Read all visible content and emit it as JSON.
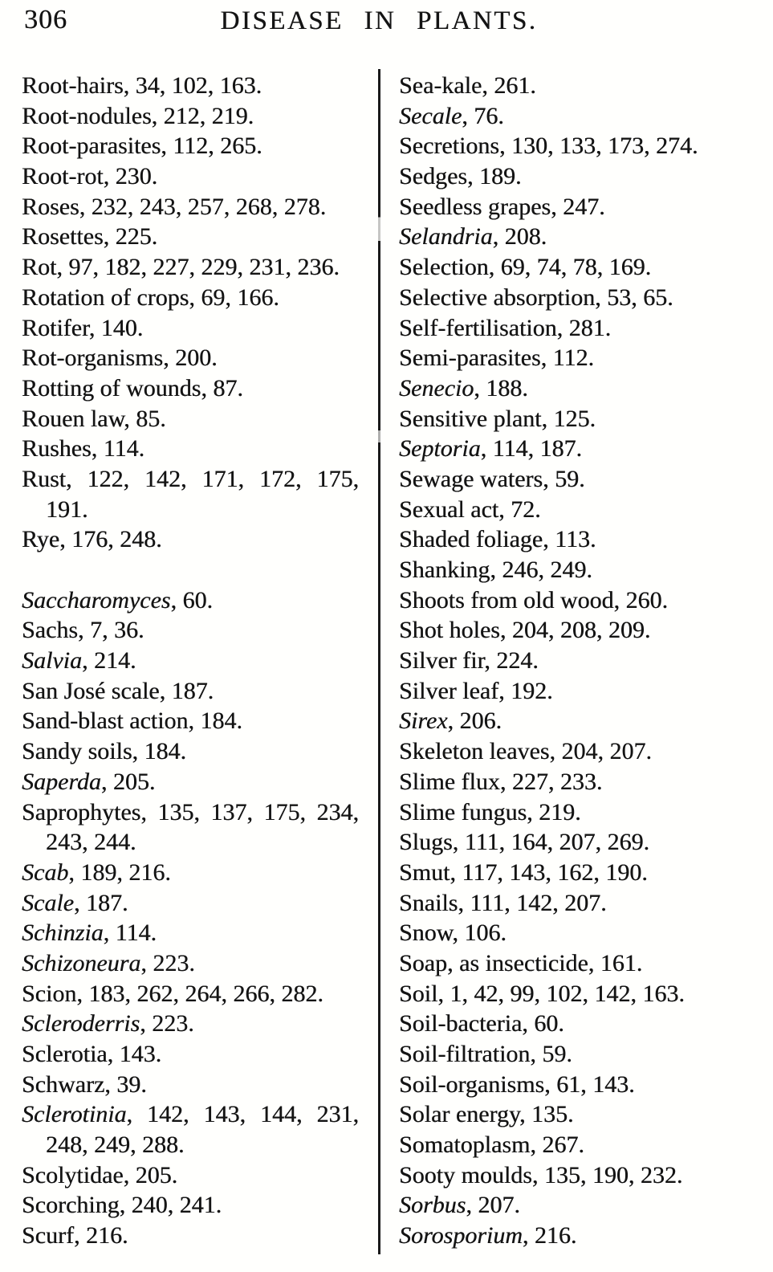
{
  "page": {
    "number": "306",
    "title": "DISEASE IN PLANTS."
  },
  "index": {
    "left": [
      {
        "t": "Root-hairs",
        "p": ", 34, 102, 163.",
        "i": false
      },
      {
        "t": "Root-nodules",
        "p": ", 212, 219.",
        "i": false
      },
      {
        "t": "Root-parasites",
        "p": ", 112, 265.",
        "i": false
      },
      {
        "t": "Root-rot",
        "p": ", 230.",
        "i": false
      },
      {
        "t": "Roses",
        "p": ", 232, 243, 257, 268, 278.",
        "i": false
      },
      {
        "t": "Rosettes",
        "p": ", 225.",
        "i": false
      },
      {
        "t": "Rot",
        "p": ", 97, 182, 227, 229, 231, 236.",
        "i": false
      },
      {
        "t": "Rotation of crops",
        "p": ", 69, 166.",
        "i": false
      },
      {
        "t": "Rotifer",
        "p": ", 140.",
        "i": false
      },
      {
        "t": "Rot-organisms",
        "p": ", 200.",
        "i": false
      },
      {
        "t": "Rotting of wounds",
        "p": ", 87.",
        "i": false
      },
      {
        "t": "Rouen law",
        "p": ", 85.",
        "i": false
      },
      {
        "t": "Rushes",
        "p": ", 114.",
        "i": false
      },
      {
        "t": "Rust",
        "p": ", 122, 142, 171, 172, 175,",
        "i": false,
        "j": true
      },
      {
        "c": "191."
      },
      {
        "t": "Rye",
        "p": ", 176, 248.",
        "i": false
      },
      {
        "blank": true
      },
      {
        "t": "Saccharomyces",
        "p": ", 60.",
        "i": true
      },
      {
        "t": "Sachs",
        "p": ", 7, 36.",
        "i": false
      },
      {
        "t": "Salvia",
        "p": ", 214.",
        "i": true
      },
      {
        "t": "San José scale",
        "p": ", 187.",
        "i": false
      },
      {
        "t": "Sand-blast action",
        "p": ", 184.",
        "i": false
      },
      {
        "t": "Sandy soils",
        "p": ", 184.",
        "i": false
      },
      {
        "t": "Saperda",
        "p": ", 205.",
        "i": true
      },
      {
        "t": "Saprophytes",
        "p": ", 135, 137, 175, 234,",
        "i": false,
        "j": true
      },
      {
        "c": "243, 244."
      },
      {
        "t": "Scab",
        "p": ", 189, 216.",
        "i": true
      },
      {
        "t": "Scale",
        "p": ", 187.",
        "i": true
      },
      {
        "t": "Schinzia",
        "p": ", 114.",
        "i": true
      },
      {
        "t": "Schizoneura",
        "p": ", 223.",
        "i": true
      },
      {
        "t": "Scion",
        "p": ", 183, 262, 264, 266, 282.",
        "i": false
      },
      {
        "t": "Scleroderris",
        "p": ", 223.",
        "i": true
      },
      {
        "t": "Sclerotia",
        "p": ", 143.",
        "i": false
      },
      {
        "t": "Schwarz",
        "p": ", 39.",
        "i": false
      },
      {
        "t": "Sclerotinia",
        "p": ", 142, 143, 144, 231,",
        "i": true,
        "j": true
      },
      {
        "c": "248, 249, 288."
      },
      {
        "t": "Scolytidae",
        "p": ", 205.",
        "i": false
      },
      {
        "t": "Scorching",
        "p": ", 240, 241.",
        "i": false
      },
      {
        "t": "Scurf",
        "p": ", 216.",
        "i": false
      }
    ],
    "right": [
      {
        "t": "Sea-kale",
        "p": ", 261.",
        "i": false
      },
      {
        "t": "Secale",
        "p": ", 76.",
        "i": true
      },
      {
        "t": "Secretions",
        "p": ", 130, 133, 173, 274.",
        "i": false
      },
      {
        "t": "Sedges",
        "p": ", 189.",
        "i": false
      },
      {
        "t": "Seedless grapes",
        "p": ", 247.",
        "i": false
      },
      {
        "t": "Selandria",
        "p": ", 208.",
        "i": true
      },
      {
        "t": "Selection",
        "p": ", 69, 74, 78, 169.",
        "i": false
      },
      {
        "t": "Selective absorption",
        "p": ", 53, 65.",
        "i": false
      },
      {
        "t": "Self-fertilisation",
        "p": ", 281.",
        "i": false
      },
      {
        "t": "Semi-parasites",
        "p": ", 112.",
        "i": false
      },
      {
        "t": "Senecio",
        "p": ", 188.",
        "i": true
      },
      {
        "t": "Sensitive plant",
        "p": ", 125.",
        "i": false
      },
      {
        "t": "Septoria",
        "p": ", 114, 187.",
        "i": true
      },
      {
        "t": "Sewage waters",
        "p": ", 59.",
        "i": false
      },
      {
        "t": "Sexual act",
        "p": ", 72.",
        "i": false
      },
      {
        "t": "Shaded foliage",
        "p": ", 113.",
        "i": false
      },
      {
        "t": "Shanking",
        "p": ", 246, 249.",
        "i": false
      },
      {
        "t": "Shoots from old wood",
        "p": ", 260.",
        "i": false
      },
      {
        "t": "Shot holes",
        "p": ", 204, 208, 209.",
        "i": false
      },
      {
        "t": "Silver fir",
        "p": ", 224.",
        "i": false
      },
      {
        "t": "Silver leaf",
        "p": ", 192.",
        "i": false
      },
      {
        "t": "Sirex",
        "p": ", 206.",
        "i": true
      },
      {
        "t": "Skeleton leaves",
        "p": ", 204, 207.",
        "i": false
      },
      {
        "t": "Slime flux",
        "p": ", 227, 233.",
        "i": false
      },
      {
        "t": "Slime fungus",
        "p": ", 219.",
        "i": false
      },
      {
        "t": "Slugs",
        "p": ", 111, 164, 207, 269.",
        "i": false
      },
      {
        "t": "Smut",
        "p": ", 117, 143, 162, 190.",
        "i": false
      },
      {
        "t": "Snails",
        "p": ", 111, 142, 207.",
        "i": false
      },
      {
        "t": "Snow",
        "p": ", 106.",
        "i": false
      },
      {
        "t": "Soap, as insecticide",
        "p": ", 161.",
        "i": false
      },
      {
        "t": "Soil",
        "p": ", 1, 42, 99, 102, 142, 163.",
        "i": false
      },
      {
        "t": "Soil-bacteria",
        "p": ", 60.",
        "i": false
      },
      {
        "t": "Soil-filtration",
        "p": ", 59.",
        "i": false
      },
      {
        "t": "Soil-organisms",
        "p": ", 61, 143.",
        "i": false
      },
      {
        "t": "Solar energy",
        "p": ", 135.",
        "i": false
      },
      {
        "t": "Somatoplasm",
        "p": ", 267.",
        "i": false
      },
      {
        "t": "Sooty moulds",
        "p": ", 135, 190, 232.",
        "i": false
      },
      {
        "t": "Sorbus",
        "p": ", 207.",
        "i": true
      },
      {
        "t": "Sorosporium",
        "p": ", 216.",
        "i": true
      }
    ]
  }
}
